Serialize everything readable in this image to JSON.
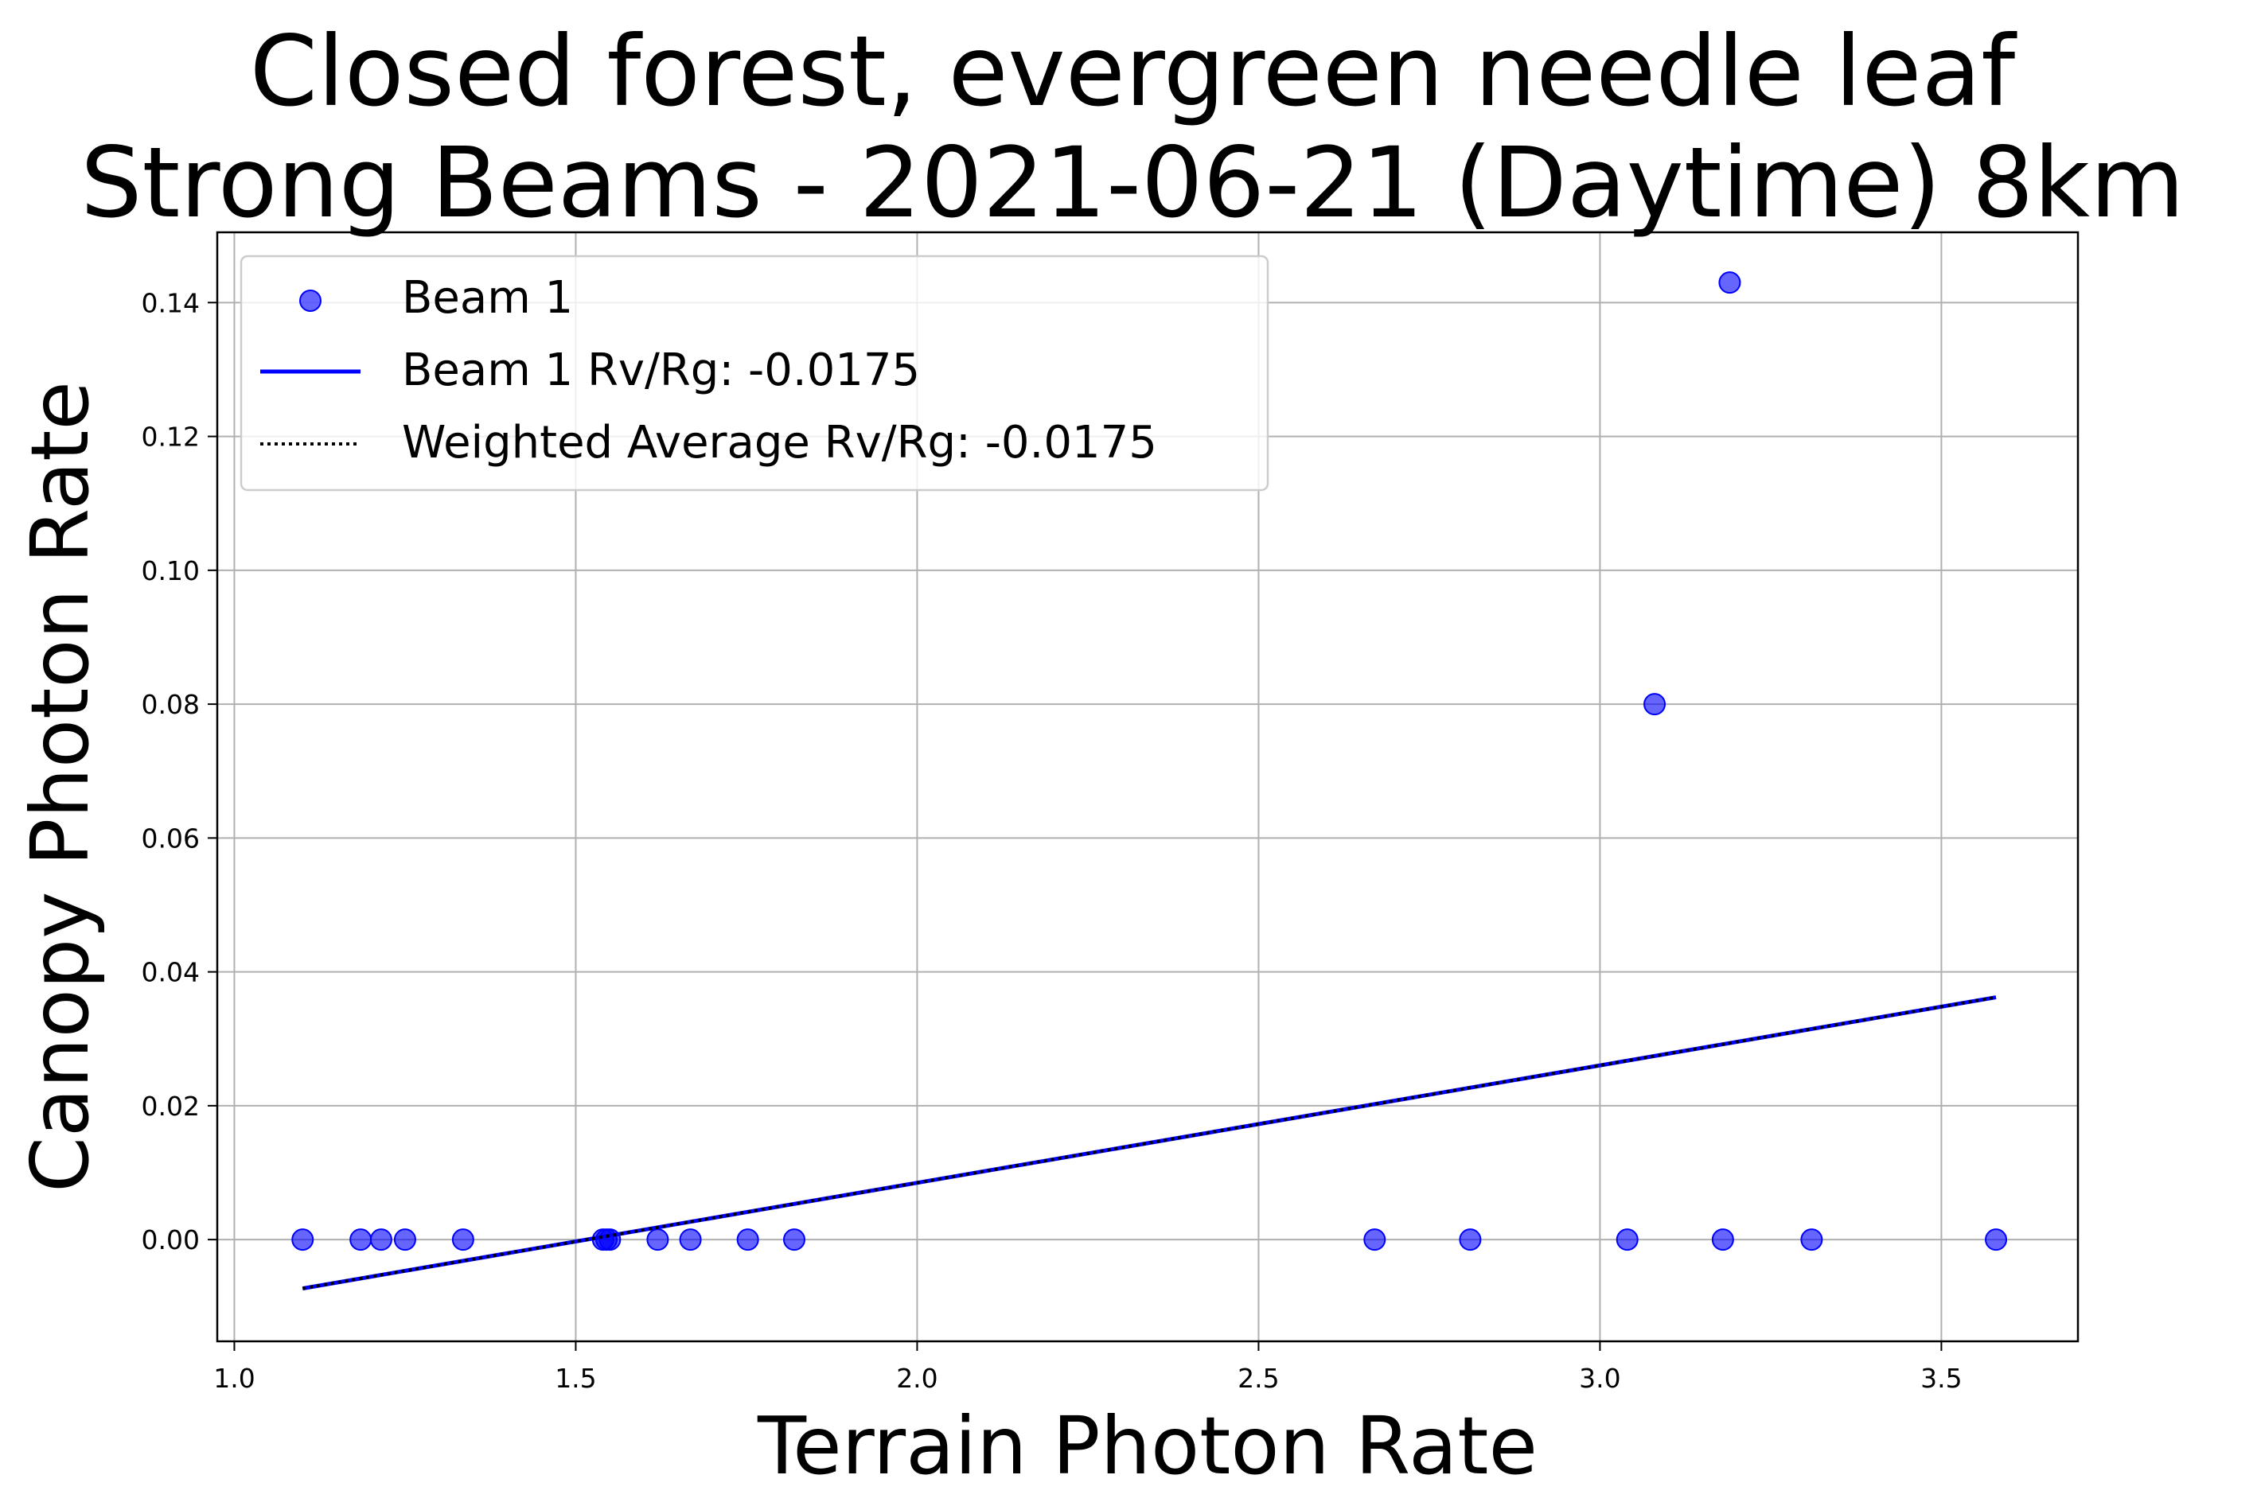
{
  "chart_data": {
    "type": "scatter",
    "title": [
      "Closed forest, evergreen needle leaf",
      "Strong Beams - 2021-06-21 (Daytime) 8km"
    ],
    "xlabel": "Terrain Photon Rate",
    "ylabel": "Canopy Photon Rate",
    "xlim": [
      0.975,
      3.7
    ],
    "ylim": [
      -0.0152,
      0.1505
    ],
    "xticks": [
      1.0,
      1.5,
      2.0,
      2.5,
      3.0,
      3.5
    ],
    "xtick_labels": [
      "1.0",
      "1.5",
      "2.0",
      "2.5",
      "3.0",
      "3.5"
    ],
    "yticks": [
      0.0,
      0.02,
      0.04,
      0.06,
      0.08,
      0.1,
      0.12,
      0.14
    ],
    "ytick_labels": [
      "0.00",
      "0.02",
      "0.04",
      "0.06",
      "0.08",
      "0.10",
      "0.12",
      "0.14"
    ],
    "grid": true,
    "legend_position": "top-left",
    "legend": [
      {
        "label": "Beam 1",
        "kind": "marker",
        "color": "#0000ff"
      },
      {
        "label": "Beam 1 Rv/Rg: -0.0175",
        "kind": "solid-line",
        "color": "#0000ff"
      },
      {
        "label": "Weighted Average Rv/Rg: -0.0175",
        "kind": "dotted-line",
        "color": "#000000"
      }
    ],
    "series": [
      {
        "name": "Beam 1",
        "kind": "scatter",
        "color": "#0000ff",
        "points": [
          [
            1.1,
            0.0
          ],
          [
            1.185,
            0.0
          ],
          [
            1.215,
            0.0
          ],
          [
            1.25,
            0.0
          ],
          [
            1.335,
            0.0
          ],
          [
            1.54,
            0.0
          ],
          [
            1.545,
            0.0
          ],
          [
            1.55,
            0.0
          ],
          [
            1.62,
            0.0
          ],
          [
            1.668,
            0.0
          ],
          [
            1.752,
            0.0
          ],
          [
            1.82,
            0.0
          ],
          [
            2.67,
            0.0
          ],
          [
            2.81,
            0.0
          ],
          [
            3.04,
            0.0
          ],
          [
            3.08,
            0.08
          ],
          [
            3.18,
            0.0
          ],
          [
            3.19,
            0.143
          ],
          [
            3.31,
            0.0
          ],
          [
            3.58,
            0.0
          ]
        ]
      },
      {
        "name": "Beam 1 Rv/Rg: -0.0175",
        "kind": "line",
        "color": "#0000ff",
        "points": [
          [
            1.1,
            -0.0073
          ],
          [
            3.58,
            0.0362
          ]
        ]
      },
      {
        "name": "Weighted Average Rv/Rg: -0.0175",
        "kind": "dotted-line",
        "color": "#000000",
        "points": [
          [
            1.1,
            -0.0073
          ],
          [
            3.58,
            0.0362
          ]
        ]
      }
    ]
  }
}
